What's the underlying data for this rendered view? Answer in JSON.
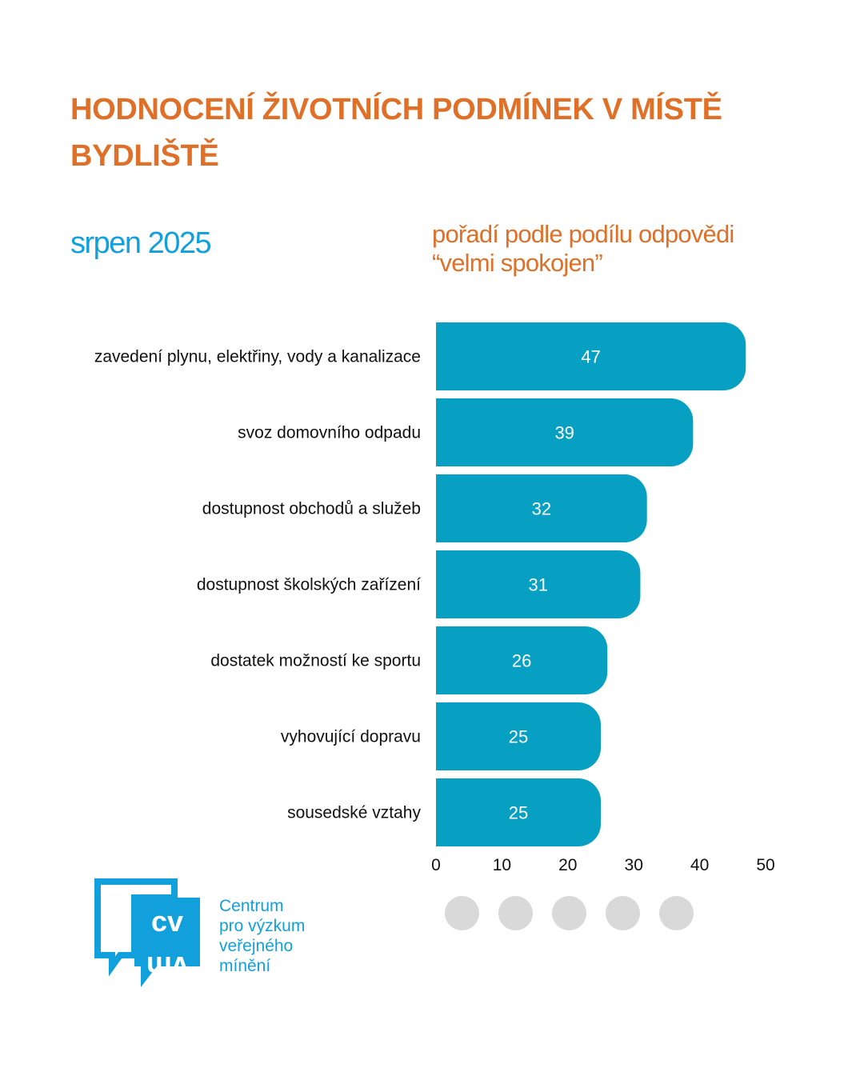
{
  "header": {
    "title": "HODNOCENÍ ŽIVOTNÍCH PODMÍNEK V MÍSTĚ BYDLIŠTĚ",
    "date": "srpen 2025",
    "subtitle_line1": "pořadí podle podílu odpovědi",
    "subtitle_line2": "“velmi spokojen”"
  },
  "colors": {
    "title": "#e07028",
    "accent_blue": "#12a0dd",
    "bar": "#07a0c3",
    "dot": "#d9d9d9"
  },
  "chart_data": {
    "type": "bar",
    "orientation": "horizontal",
    "title": "HODNOCENÍ ŽIVOTNÍCH PODMÍNEK V MÍSTĚ BYDLIŠTĚ",
    "subtitle": "pořadí podle podílu odpovědi “velmi spokojen”",
    "categories": [
      "zavedení plynu, elektřiny, vody a kanalizace",
      "svoz domovního odpadu",
      "dostupnost obchodů a služeb",
      "dostupnost školských zařízení",
      "dostatek možností ke sportu",
      "vyhovující dopravu",
      "sousedské vztahy"
    ],
    "values": [
      47,
      39,
      32,
      31,
      26,
      25,
      25
    ],
    "data_labels": [
      "47",
      "39",
      "32",
      "31",
      "26",
      "25",
      "25"
    ],
    "xlabel": "",
    "ylabel": "",
    "xlim": [
      0,
      50
    ],
    "xticks": [
      0,
      10,
      20,
      30,
      40,
      50
    ],
    "xtick_labels": [
      "0",
      "10",
      "20",
      "30",
      "40",
      "50"
    ],
    "grid": false,
    "legend": "none"
  },
  "footer": {
    "logo_mark": "cvvm",
    "logo_line1": "Centrum",
    "logo_line2": "pro výzkum",
    "logo_line3": "veřejného",
    "logo_line4": "mínění",
    "dot_count": 5
  }
}
